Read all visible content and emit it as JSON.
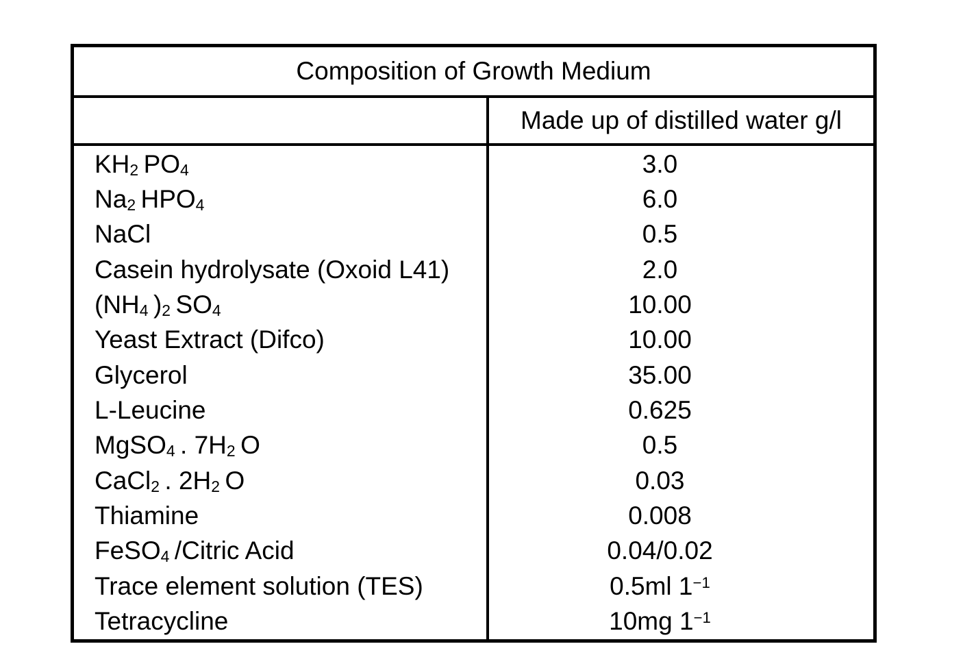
{
  "colors": {
    "background": "#ffffff",
    "border": "#000000",
    "text": "#000000"
  },
  "table": {
    "title": "Composition of Growth Medium",
    "component_column_header": "",
    "value_column_header": "Made up of distilled water g/l",
    "rows": [
      {
        "component": "KH<sub>2</sub> PO<sub>4</sub>",
        "amount": "3.0"
      },
      {
        "component": "Na<sub>2</sub> HPO<sub>4</sub>",
        "amount": "6.0"
      },
      {
        "component": "NaCl",
        "amount": "0.5"
      },
      {
        "component": "Casein hydrolysate (Oxoid L41)",
        "amount": "2.0"
      },
      {
        "component": "(NH<sub>4</sub> )<sub>2</sub> SO<sub>4</sub>",
        "amount": "10.00"
      },
      {
        "component": "Yeast Extract (Difco)",
        "amount": "10.00"
      },
      {
        "component": "Glycerol",
        "amount": "35.00"
      },
      {
        "component": "L-Leucine",
        "amount": "0.625"
      },
      {
        "component": "MgSO<sub>4</sub> . 7H<sub>2</sub> O",
        "amount": "0.5"
      },
      {
        "component": "CaCl<sub>2</sub> . 2H<sub>2</sub> O",
        "amount": "0.03"
      },
      {
        "component": "Thiamine",
        "amount": "0.008"
      },
      {
        "component": "FeSO<sub>4</sub> /Citric Acid",
        "amount": "0.04/0.02"
      },
      {
        "component": "Trace element solution (TES)",
        "amount": "0.5ml 1<sup>−1</sup>"
      },
      {
        "component": "Tetracycline",
        "amount": "10mg 1<sup>−1</sup>"
      }
    ]
  }
}
